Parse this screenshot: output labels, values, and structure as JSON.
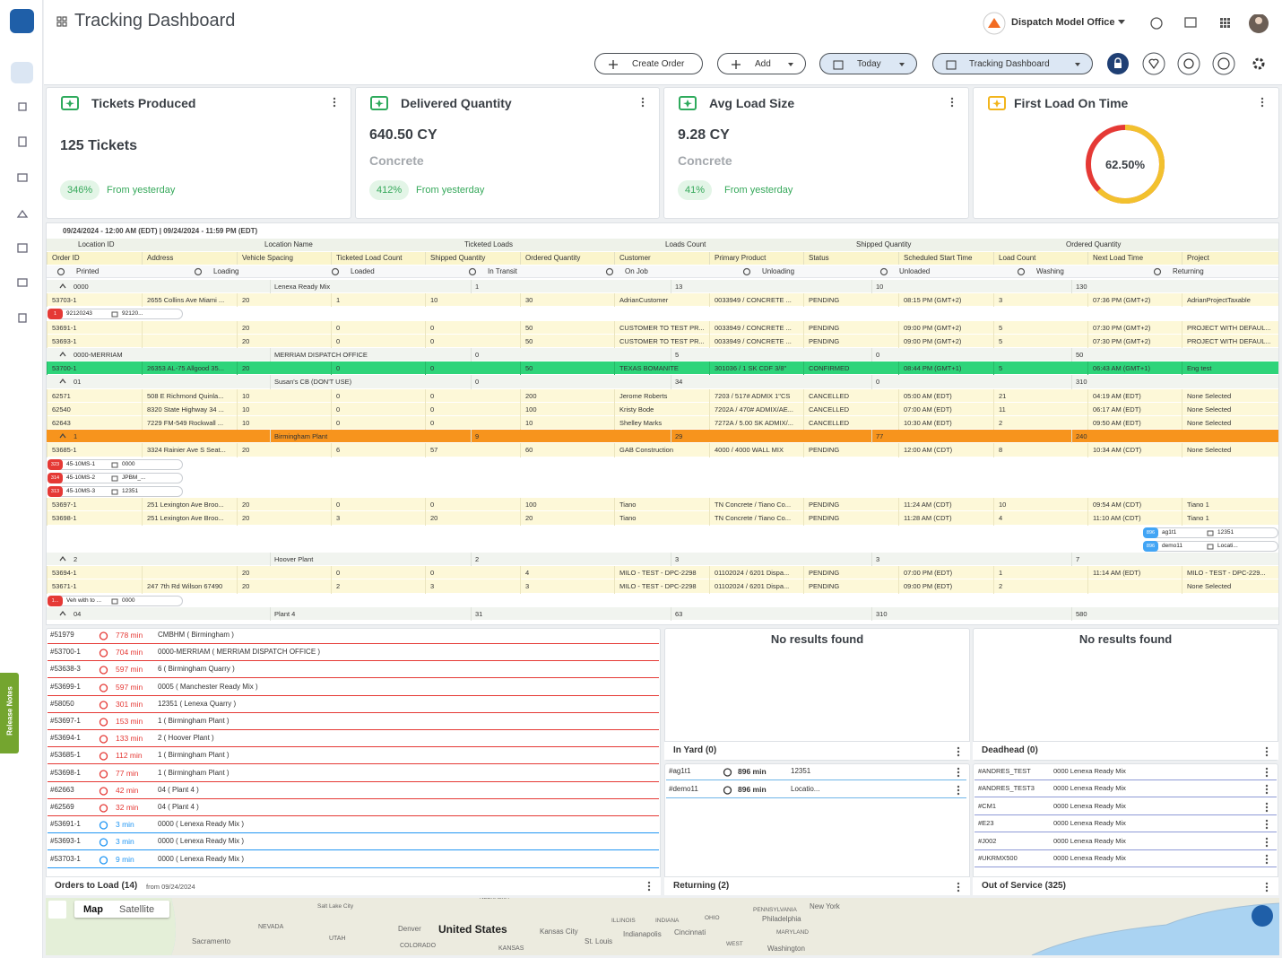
{
  "header": {
    "title": "Tracking Dashboard",
    "office": "Dispatch Model Office"
  },
  "toolbar": [
    "Create Order",
    "Add",
    "Today",
    "Tracking Dashboard"
  ],
  "kpis": [
    {
      "title": "Tickets Produced",
      "main": "125 Tickets",
      "sub": null,
      "change": "346%",
      "note": "From yesterday",
      "icon_color": "#2eaa5c"
    },
    {
      "title": "Delivered Quantity",
      "main": "640.50 CY",
      "sub": "Concrete",
      "change": "412%",
      "note": "From yesterday",
      "icon_color": "#2eaa5c"
    },
    {
      "title": "Avg Load Size",
      "main": "9.28 CY",
      "sub": "Concrete",
      "change": "41%",
      "note": "From yesterday",
      "icon_color": "#2eaa5c"
    }
  ],
  "first_load": {
    "title": "First Load On Time",
    "value": 62.5,
    "label": "62.50%",
    "icon_color": "#f2b51c",
    "color": "#f2c12e",
    "rest_color": "#e53935"
  },
  "table": {
    "date_range": "09/24/2024 - 12:00 AM (EDT) | 09/24/2024 - 11:59 PM (EDT)",
    "group_headers": [
      "Location ID",
      "Location Name",
      "Ticketed Loads",
      "Loads Count",
      "Shipped Quantity",
      "Ordered Quantity"
    ],
    "columns": [
      "Order ID",
      "Address",
      "Vehicle Spacing",
      "Ticketed Load Count",
      "Shipped Quantity",
      "Ordered Quantity",
      "Customer",
      "Primary Product",
      "Status",
      "Scheduled Start Time",
      "Load Count",
      "Next Load Time",
      "Project"
    ],
    "statuses": [
      "Printed",
      "Loading",
      "Loaded",
      "In Transit",
      "On Job",
      "Unloading",
      "Unloaded",
      "Washing",
      "Returning"
    ],
    "rows": [
      {
        "kind": "group",
        "cells": [
          "0000",
          "Lenexa Ready Mix",
          "1",
          "13",
          "10",
          "130"
        ]
      },
      {
        "kind": "order",
        "cells": [
          "53703-1",
          "2655 Collins Ave Miami ...",
          "20",
          "1",
          "10",
          "30",
          "AdrianCustomer",
          "0033949 / CONCRETE ...",
          "PENDING",
          "08:15 PM (GMT+2)",
          "3",
          "07:36 PM (GMT+2)",
          "AdrianProjectTaxable"
        ]
      },
      {
        "kind": "chips",
        "chips": [
          {
            "badge": "1",
            "a": "92120243",
            "b": "92120...",
            "badge_color": "#e53935"
          }
        ]
      },
      {
        "kind": "order",
        "cells": [
          "53691-1",
          null,
          "20",
          "0",
          "0",
          "50",
          "CUSTOMER TO TEST PR...",
          "0033949 / CONCRETE ...",
          "PENDING",
          "09:00 PM (GMT+2)",
          "5",
          "07:30 PM (GMT+2)",
          "PROJECT WITH DEFAUL..."
        ]
      },
      {
        "kind": "order",
        "cells": [
          "53693-1",
          null,
          "20",
          "0",
          "0",
          "50",
          "CUSTOMER TO TEST PR...",
          "0033949 / CONCRETE ...",
          "PENDING",
          "09:00 PM (GMT+2)",
          "5",
          "07:30 PM (GMT+2)",
          "PROJECT WITH DEFAUL..."
        ]
      },
      {
        "kind": "group",
        "cells": [
          "0000-MERRIAM",
          "MERRIAM DISPATCH OFFICE",
          "0",
          "5",
          "0",
          "50"
        ]
      },
      {
        "kind": "order",
        "highlight": "#2ed47a",
        "cells": [
          "53700-1",
          "26353 AL-75 Allgood 35...",
          "20",
          "0",
          "0",
          "50",
          "TEXAS BOMANITE",
          "301036 / 1 SK CDF 3/8\"",
          "CONFIRMED",
          "08:44 PM (GMT+1)",
          "5",
          "06:43 AM (GMT+1)",
          "Eng test"
        ]
      },
      {
        "kind": "group",
        "cells": [
          "01",
          "Susan's CB (DON'T USE)",
          "0",
          "34",
          "0",
          "310"
        ]
      },
      {
        "kind": "order",
        "cells": [
          "62571",
          "508 E Richmond Quinla...",
          "10",
          "0",
          "0",
          "200",
          "Jerome Roberts",
          "7203 / 517# ADMIX 1\"CS",
          "CANCELLED",
          "05:00 AM (EDT)",
          "21",
          "04:19 AM (EDT)",
          "None Selected"
        ]
      },
      {
        "kind": "order",
        "cells": [
          "62540",
          "8320 State Highway 34 ...",
          "10",
          "0",
          "0",
          "100",
          "Kristy Bode",
          "7202A / 470# ADMIX/AE...",
          "CANCELLED",
          "07:00 AM (EDT)",
          "11",
          "06:17 AM (EDT)",
          "None Selected"
        ]
      },
      {
        "kind": "order",
        "cells": [
          "62643",
          "7229 FM-549 Rockwall ...",
          "10",
          "0",
          "0",
          "10",
          "Shelley Marks",
          "7272A / 5.00 SK ADMIX/...",
          "CANCELLED",
          "10:30 AM (EDT)",
          "2",
          "09:50 AM (EDT)",
          "None Selected"
        ]
      },
      {
        "kind": "group",
        "highlight": "#f7941d",
        "cells": [
          "1",
          "Birmingham Plant",
          "9",
          "29",
          "77",
          "240"
        ]
      },
      {
        "kind": "order",
        "cells": [
          "53685-1",
          "3324 Rainier Ave S Seat...",
          "20",
          "6",
          "57",
          "60",
          "GAB Construction",
          "4000 / 4000 WALL MIX",
          "PENDING",
          "12:00 AM (CDT)",
          "8",
          "10:34 AM (CDT)",
          "None Selected"
        ]
      },
      {
        "kind": "chips",
        "chips": [
          {
            "badge": "323",
            "a": "45-10MS-1",
            "b": "0000",
            "badge_color": "#e53935"
          },
          {
            "badge": "314",
            "a": "45-10MS-2",
            "b": "JPBM_...",
            "badge_color": "#e53935"
          },
          {
            "badge": "313",
            "a": "45-10MS-3",
            "b": "12351",
            "badge_color": "#e53935"
          }
        ]
      },
      {
        "kind": "order",
        "cells": [
          "53697-1",
          "251 Lexington Ave Broo...",
          "20",
          "0",
          "0",
          "100",
          "Tiano",
          "TN Concrete / Tiano Co...",
          "PENDING",
          "11:24 AM (CDT)",
          "10",
          "09:54 AM (CDT)",
          "Tiano 1"
        ]
      },
      {
        "kind": "order",
        "cells": [
          "53698-1",
          "251 Lexington Ave Broo...",
          "20",
          "3",
          "20",
          "20",
          "Tiano",
          "TN Concrete / Tiano Co...",
          "PENDING",
          "11:28 AM (CDT)",
          "4",
          "11:10 AM (CDT)",
          "Tiano 1"
        ]
      },
      {
        "kind": "chips",
        "align": "right",
        "chips": [
          {
            "badge": "896",
            "a": "ag1t1",
            "b": "12351",
            "badge_color": "#42a5f5"
          },
          {
            "badge": "896",
            "a": "demo11",
            "b": "Locati...",
            "badge_color": "#42a5f5"
          }
        ]
      },
      {
        "kind": "group",
        "cells": [
          "2",
          "Hoover Plant",
          "2",
          "3",
          "3",
          "7"
        ]
      },
      {
        "kind": "order",
        "cells": [
          "53694-1",
          null,
          "20",
          "0",
          "0",
          "4",
          "MILO - TEST - DPC-2298",
          "01102024 / 6201 Dispa...",
          "PENDING",
          "07:00 PM (EDT)",
          "1",
          "11:14 AM (EDT)",
          "MILO - TEST - DPC-229..."
        ]
      },
      {
        "kind": "order",
        "cells": [
          "53671-1",
          "247 7th Rd Wilson 67490",
          "20",
          "2",
          "3",
          "3",
          "MILO - TEST - DPC-2298",
          "01102024 / 6201 Dispa...",
          "PENDING",
          "09:00 PM (EDT)",
          "2",
          null,
          "None Selected"
        ]
      },
      {
        "kind": "chips",
        "chips": [
          {
            "badge": "1...",
            "a": "Veh with to ...",
            "b": "0000",
            "badge_color": "#e53935"
          }
        ]
      },
      {
        "kind": "group",
        "cells": [
          "04",
          "Plant 4",
          "31",
          "63",
          "310",
          "580"
        ]
      }
    ]
  },
  "orders_to_load": {
    "title": "Orders to Load (14)",
    "from": "from 09/24/2024",
    "items": [
      {
        "id": "#51979",
        "time": "778 min",
        "location": "CMBHM ( Birmingham )",
        "color": "#e53935"
      },
      {
        "id": "#53700-1",
        "time": "704 min",
        "location": "0000-MERRIAM ( MERRIAM DISPATCH OFFICE )",
        "color": "#e53935"
      },
      {
        "id": "#53638-3",
        "time": "597 min",
        "location": "6 ( Birmingham Quarry )",
        "color": "#e53935"
      },
      {
        "id": "#53699-1",
        "time": "597 min",
        "location": "0005 ( Manchester Ready Mix )",
        "color": "#e53935"
      },
      {
        "id": "#58050",
        "time": "301 min",
        "location": "12351 ( Lenexa Quarry )",
        "color": "#e53935"
      },
      {
        "id": "#53697-1",
        "time": "153 min",
        "location": "1 ( Birmingham Plant )",
        "color": "#e53935"
      },
      {
        "id": "#53694-1",
        "time": "133 min",
        "location": "2 ( Hoover Plant )",
        "color": "#e53935"
      },
      {
        "id": "#53685-1",
        "time": "112 min",
        "location": "1 ( Birmingham Plant )",
        "color": "#e53935"
      },
      {
        "id": "#53698-1",
        "time": "77 min",
        "location": "1 ( Birmingham Plant )",
        "color": "#e53935"
      },
      {
        "id": "#62663",
        "time": "42 min",
        "location": "04 ( Plant 4 )",
        "color": "#e53935"
      },
      {
        "id": "#62569",
        "time": "32 min",
        "location": "04 ( Plant 4 )",
        "color": "#e53935"
      },
      {
        "id": "#53691-1",
        "time": "3 min",
        "location": "0000 ( Lenexa Ready Mix )",
        "color": "#2196f3"
      },
      {
        "id": "#53693-1",
        "time": "3 min",
        "location": "0000 ( Lenexa Ready Mix )",
        "color": "#2196f3"
      },
      {
        "id": "#53703-1",
        "time": "9 min",
        "location": "0000 ( Lenexa Ready Mix )",
        "color": "#2196f3"
      }
    ]
  },
  "in_yard": {
    "empty": "No results found",
    "title": "In Yard (0)"
  },
  "deadhead": {
    "empty": "No results found",
    "title": "Deadhead (0)"
  },
  "returning": {
    "title": "Returning (2)",
    "items": [
      {
        "id": "#ag1t1",
        "time": "896 min",
        "location": "12351"
      },
      {
        "id": "#demo11",
        "time": "896 min",
        "location": "Locatio..."
      }
    ]
  },
  "out_of_service": {
    "title": "Out of Service (325)",
    "items": [
      {
        "id": "#ANDRES_TEST",
        "location": "0000 Lenexa Ready Mix"
      },
      {
        "id": "#ANDRES_TEST3",
        "location": "0000 Lenexa Ready Mix"
      },
      {
        "id": "#CM1",
        "location": "0000 Lenexa Ready Mix"
      },
      {
        "id": "#E23",
        "location": "0000 Lenexa Ready Mix"
      },
      {
        "id": "#J002",
        "location": "0000 Lenexa Ready Mix"
      },
      {
        "id": "#UKRMX500",
        "location": "0000 Lenexa Ready Mix"
      }
    ]
  },
  "map": {
    "buttons": [
      "Map",
      "Satellite"
    ],
    "labels": [
      "United States",
      "NEBRASKA",
      "NEVADA",
      "UTAH",
      "COLORADO",
      "KANSAS",
      "Salt Lake City",
      "Denver",
      "Sacramento",
      "Kansas City",
      "St. Louis",
      "ILLINOIS",
      "INDIANA",
      "OHIO",
      "Indianapolis",
      "Cincinnati",
      "PENNSYLVANIA",
      "Philadelphia",
      "MARYLAND",
      "Washington",
      "WEST",
      "New York"
    ]
  },
  "release_notes": "Release Notes"
}
